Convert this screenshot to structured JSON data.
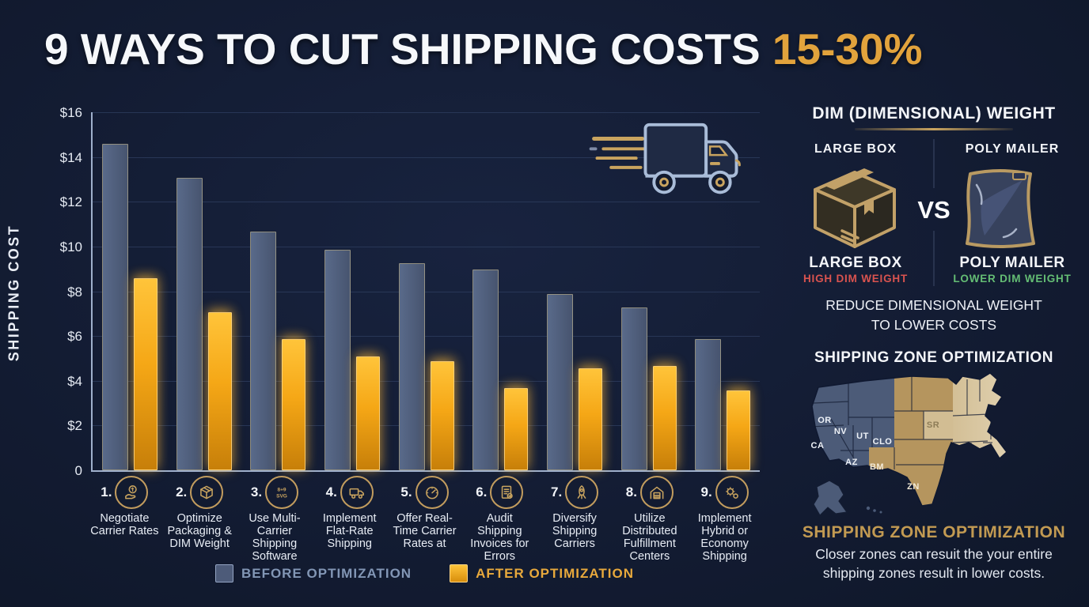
{
  "title": {
    "main": "9 WAYS TO CUT SHIPPING COSTS",
    "highlight": "15-30%"
  },
  "chart_data": {
    "type": "bar",
    "title": "9 Ways to Cut Shipping Costs",
    "ylabel": "SHIPPING COST",
    "xlabel": "",
    "ylim": [
      0,
      16
    ],
    "grid": true,
    "legend_position": "bottom",
    "ytick_labels": [
      "$16",
      "$14",
      "$12",
      "$10",
      "$8",
      "$6",
      "$4",
      "$2",
      "0"
    ],
    "categories": [
      "Negotiate Carrier Rates",
      "Optimize Packaging & DIM Weight",
      "Use Multi-Carrier Shipping Software",
      "Implement Flat-Rate Shipping",
      "Offer Real-Time Carrier Rates at",
      "Audit Shipping Invoices for Errors",
      "Diversify Shipping Carriers",
      "Utilize Distributed Fulfillment Centers",
      "Implement Hybrid or Economy Shipping"
    ],
    "category_numbers": [
      "1.",
      "2.",
      "3.",
      "4.",
      "5.",
      "6.",
      "7.",
      "8.",
      "9."
    ],
    "category_icons": [
      "money-hand-icon",
      "package-icon",
      "software-icon",
      "truck-icon",
      "gauge-icon",
      "invoice-icon",
      "rocket-icon",
      "warehouse-icon",
      "gears-icon"
    ],
    "series": [
      {
        "name": "BEFORE OPTIMIZATION",
        "color": "#4d5b79",
        "label_color": "#8296b5",
        "values": [
          14.5,
          13.0,
          10.6,
          9.8,
          9.2,
          8.9,
          7.8,
          7.2,
          5.8
        ]
      },
      {
        "name": "AFTER OPTIMIZATION",
        "color": "#f5a716",
        "label_color": "#e8a93c",
        "values": [
          8.5,
          7.0,
          5.8,
          5.0,
          4.8,
          3.6,
          4.5,
          4.6,
          3.5
        ]
      }
    ]
  },
  "decorations": {
    "truck_icon": "delivery-truck-icon"
  },
  "dim_section": {
    "title": "DIM (DIMENSIONAL) WEIGHT",
    "left": {
      "header": "LARGE BOX",
      "icon": "large-box-icon",
      "caption": "LARGE BOX",
      "sub": "HIGH DIM WEIGHT",
      "sub_color": "#d9534f"
    },
    "vs": "VS",
    "right": {
      "header": "POLY MAILER",
      "icon": "poly-mailer-icon",
      "caption": "POLY MAILER",
      "sub": "LOWER DIM WEIGHT",
      "sub_color": "#64bd74"
    },
    "footer_line1": "REDUCE DIMENSIONAL WEIGHT",
    "footer_line2": "TO LOWER COSTS"
  },
  "zone_section": {
    "title": "SHIPPING ZONE OPTIMIZATION",
    "map_labels": {
      "or": "OR",
      "ca": "CA",
      "nv": "NV",
      "ut": "UT",
      "clo": "CLO",
      "az": "AZ",
      "bm": "BM",
      "zn": "ZN",
      "sr": "SR"
    },
    "map_colors": {
      "west": "#4c5b78",
      "central": "#b5955e",
      "east_light": "#dcc9a4",
      "east_lightest": "#efe5cd"
    },
    "heading": "SHIPPING ZONE OPTIMIZATION",
    "body_line1": "Closer zones can resuit the your entire",
    "body_line2": "shipping zones result in lower costs."
  }
}
